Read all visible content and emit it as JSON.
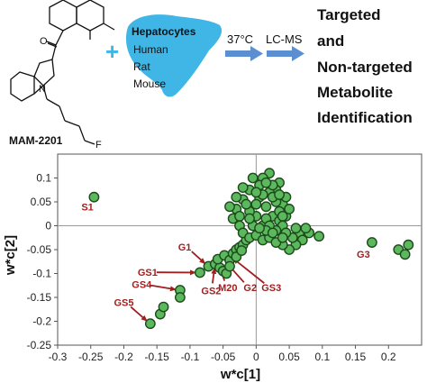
{
  "scheme": {
    "compound_label": "MAM-2201",
    "fluorine": "F",
    "oxygen": "O",
    "nitrogen": "N",
    "plus": "+",
    "cells_title": "Hepatocytes",
    "species": [
      "Human",
      "Rat",
      "Mouse"
    ],
    "step1": "37°C",
    "step2": "LC-MS",
    "outcome_lines": [
      "Targeted",
      "and",
      "Non-targeted",
      "Metabolite",
      "Identification"
    ],
    "colors": {
      "liver": "#3fb6e6",
      "arrow": "#5b8fd1",
      "plus": "#3fb6e6"
    }
  },
  "chart_data": {
    "type": "scatter",
    "xlabel": "w*c[1]",
    "ylabel": "w*c[2]",
    "xlim": [
      -0.3,
      0.25
    ],
    "ylim": [
      -0.25,
      0.15
    ],
    "xticks": [
      "-0.3",
      "-0.25",
      "-0.2",
      "-0.15",
      "-0.1",
      "-0.05",
      "0",
      "0.05",
      "0.1",
      "0.15",
      "0.2"
    ],
    "yticks": [
      "0.1",
      "0.05",
      "0",
      "-0.05",
      "-0.1",
      "-0.15",
      "-0.2",
      "-0.25"
    ],
    "grid": false,
    "marker_color": "#5cb85c",
    "marker_edge": "#1d4a1d",
    "annotation_color": "#a31f1f",
    "points": [
      {
        "x": -0.245,
        "y": 0.06
      },
      {
        "x": 0.175,
        "y": -0.035
      },
      {
        "x": 0.215,
        "y": -0.05
      },
      {
        "x": 0.225,
        "y": -0.06
      },
      {
        "x": 0.23,
        "y": -0.04
      },
      {
        "x": -0.115,
        "y": -0.135
      },
      {
        "x": -0.115,
        "y": -0.15
      },
      {
        "x": -0.145,
        "y": -0.185
      },
      {
        "x": -0.16,
        "y": -0.205
      },
      {
        "x": -0.14,
        "y": -0.17
      },
      {
        "x": -0.085,
        "y": -0.098
      },
      {
        "x": -0.072,
        "y": -0.085
      },
      {
        "x": -0.062,
        "y": -0.08
      },
      {
        "x": -0.055,
        "y": -0.088
      },
      {
        "x": -0.05,
        "y": -0.095
      },
      {
        "x": -0.045,
        "y": -0.1
      },
      {
        "x": -0.058,
        "y": -0.07
      },
      {
        "x": -0.048,
        "y": -0.062
      },
      {
        "x": -0.04,
        "y": -0.072
      },
      {
        "x": -0.035,
        "y": -0.058
      },
      {
        "x": -0.03,
        "y": -0.05
      },
      {
        "x": -0.025,
        "y": -0.045
      },
      {
        "x": -0.02,
        "y": -0.04
      },
      {
        "x": -0.015,
        "y": -0.03
      },
      {
        "x": -0.03,
        "y": -0.065
      },
      {
        "x": -0.022,
        "y": -0.052
      },
      {
        "x": -0.04,
        "y": -0.085
      },
      {
        "x": 0.065,
        "y": -0.015
      },
      {
        "x": 0.08,
        "y": -0.015
      },
      {
        "x": 0.095,
        "y": -0.022
      },
      {
        "x": 0.07,
        "y": -0.03
      },
      {
        "x": 0.06,
        "y": -0.04
      },
      {
        "x": 0.05,
        "y": -0.05
      },
      {
        "x": 0.04,
        "y": -0.04
      },
      {
        "x": 0.055,
        "y": -0.025
      },
      {
        "x": 0.035,
        "y": 0.09
      },
      {
        "x": 0.02,
        "y": 0.11
      },
      {
        "x": 0.04,
        "y": 0.045
      },
      {
        "x": -0.005,
        "y": 0.1
      },
      {
        "x": 0.01,
        "y": 0.1
      },
      {
        "x": 0.03,
        "y": 0.075
      },
      {
        "x": 0.045,
        "y": 0.02
      },
      {
        "x": -0.02,
        "y": 0.055
      },
      {
        "x": -0.03,
        "y": 0.035
      },
      {
        "x": -0.035,
        "y": 0.015
      },
      {
        "x": -0.025,
        "y": 0.0
      },
      {
        "x": -0.02,
        "y": -0.015
      },
      {
        "x": -0.01,
        "y": -0.025
      },
      {
        "x": 0.0,
        "y": -0.02
      },
      {
        "x": 0.01,
        "y": -0.03
      },
      {
        "x": 0.02,
        "y": -0.025
      },
      {
        "x": 0.03,
        "y": -0.035
      },
      {
        "x": 0.025,
        "y": 0.02
      },
      {
        "x": 0.015,
        "y": 0.04
      },
      {
        "x": 0.005,
        "y": 0.06
      },
      {
        "x": -0.01,
        "y": 0.075
      },
      {
        "x": 0.03,
        "y": 0.05
      },
      {
        "x": 0.02,
        "y": 0.07
      },
      {
        "x": 0.035,
        "y": 0.01
      },
      {
        "x": 0.01,
        "y": 0.0
      },
      {
        "x": 0.0,
        "y": 0.02
      },
      {
        "x": -0.01,
        "y": 0.03
      },
      {
        "x": -0.015,
        "y": 0.045
      },
      {
        "x": 0.005,
        "y": 0.085
      },
      {
        "x": 0.025,
        "y": 0.085
      },
      {
        "x": 0.04,
        "y": 0.0
      },
      {
        "x": 0.045,
        "y": -0.015
      },
      {
        "x": -0.005,
        "y": 0.0
      },
      {
        "x": 0.015,
        "y": 0.015
      },
      {
        "x": -0.03,
        "y": 0.06
      },
      {
        "x": 0.05,
        "y": 0.035
      },
      {
        "x": 0.045,
        "y": 0.06
      },
      {
        "x": 0.03,
        "y": -0.01
      },
      {
        "x": 0.02,
        "y": 0.0
      },
      {
        "x": 0.0,
        "y": 0.045
      },
      {
        "x": -0.01,
        "y": 0.015
      },
      {
        "x": 0.01,
        "y": 0.065
      },
      {
        "x": 0.025,
        "y": 0.06
      },
      {
        "x": -0.025,
        "y": 0.02
      },
      {
        "x": 0.015,
        "y": -0.01
      },
      {
        "x": 0.005,
        "y": -0.005
      },
      {
        "x": 0.035,
        "y": 0.03
      },
      {
        "x": 0.04,
        "y": 0.02
      },
      {
        "x": 0.06,
        "y": -0.005
      },
      {
        "x": -0.04,
        "y": 0.04
      },
      {
        "x": 0.0,
        "y": 0.07
      },
      {
        "x": 0.035,
        "y": 0.065
      },
      {
        "x": 0.015,
        "y": 0.09
      },
      {
        "x": -0.02,
        "y": 0.08
      },
      {
        "x": 0.04,
        "y": -0.025
      },
      {
        "x": 0.025,
        "y": -0.015
      },
      {
        "x": 0.075,
        "y": -0.005
      }
    ],
    "annotations": [
      {
        "text": "S1",
        "x": -0.245,
        "y": 0.06,
        "label_x": -0.255,
        "label_y": 0.032,
        "arrow": false
      },
      {
        "text": "G3",
        "x": 0.175,
        "y": -0.035,
        "label_x": 0.162,
        "label_y": -0.067,
        "arrow": false
      },
      {
        "text": "G1",
        "x": -0.072,
        "y": -0.085,
        "label_x": -0.108,
        "label_y": -0.052,
        "arrow": true
      },
      {
        "text": "GS1",
        "x": -0.085,
        "y": -0.098,
        "label_x": -0.164,
        "label_y": -0.105,
        "arrow": true
      },
      {
        "text": "GS4",
        "x": -0.115,
        "y": -0.135,
        "label_x": -0.173,
        "label_y": -0.13,
        "arrow": true
      },
      {
        "text": "GS5",
        "x": -0.16,
        "y": -0.205,
        "label_x": -0.2,
        "label_y": -0.168,
        "arrow": true
      },
      {
        "text": "GS2",
        "x": -0.062,
        "y": -0.08,
        "label_x": -0.068,
        "label_y": -0.143,
        "arrow": true
      },
      {
        "text": "M20",
        "x": -0.058,
        "y": -0.075,
        "label_x": -0.043,
        "label_y": -0.137,
        "arrow": true
      },
      {
        "text": "G2",
        "x": -0.05,
        "y": -0.07,
        "label_x": -0.009,
        "label_y": -0.137,
        "arrow": true
      },
      {
        "text": "GS3",
        "x": -0.04,
        "y": -0.063,
        "label_x": 0.023,
        "label_y": -0.137,
        "arrow": true
      }
    ]
  }
}
